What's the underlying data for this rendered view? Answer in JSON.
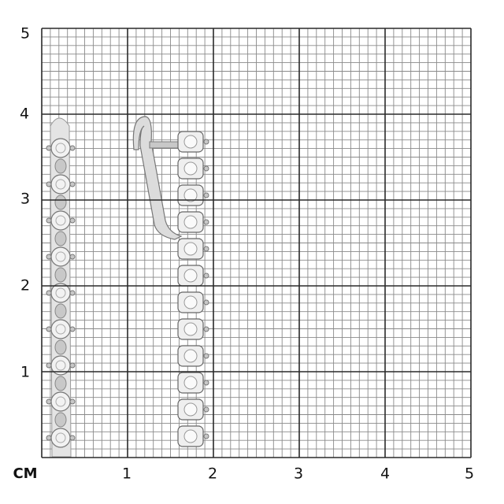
{
  "ruler": {
    "unit": "СМ",
    "x_labels": [
      "1",
      "2",
      "3",
      "4",
      "5"
    ],
    "y_labels": [
      "5",
      "4",
      "3",
      "2",
      "1"
    ],
    "grid_color": "#8a8a8a",
    "major_grid_color": "#2a2a2a"
  },
  "product": {
    "image": "silver-drop-earrings-with-stones",
    "metal_color": "#c8c8c8"
  }
}
